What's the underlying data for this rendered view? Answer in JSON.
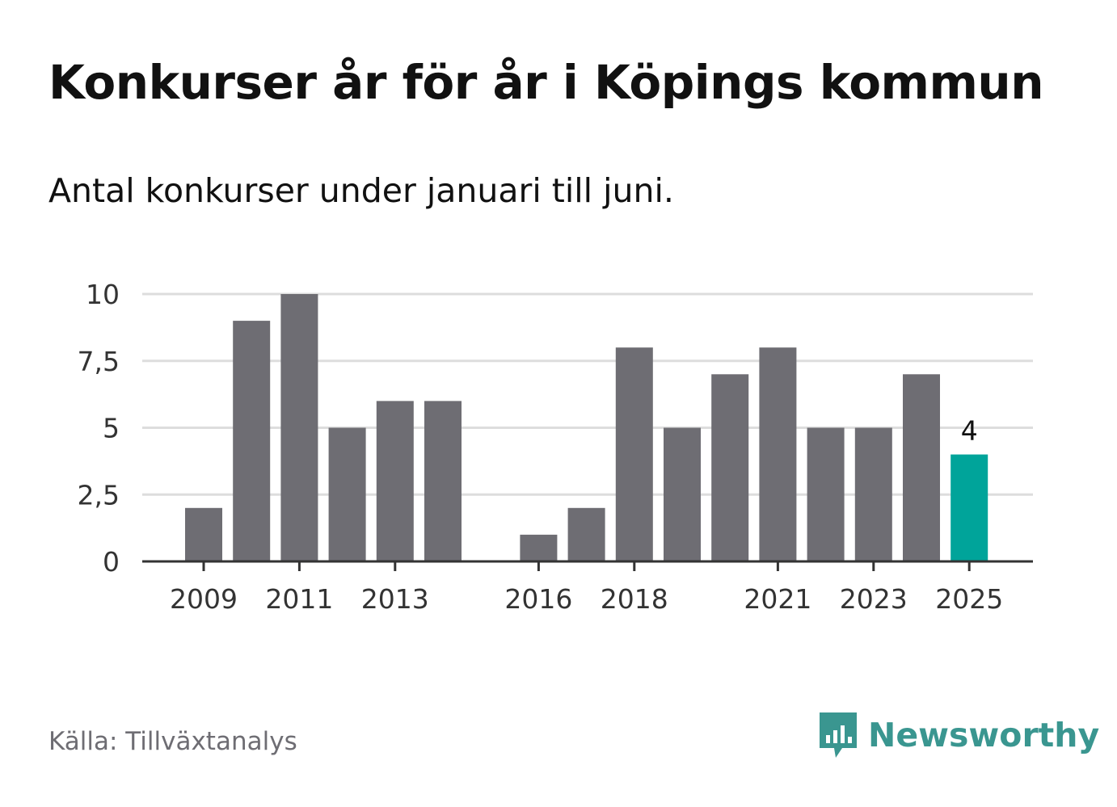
{
  "title": "Konkurser år för år i Köpings kommun",
  "subtitle": "Antal konkurser under januari till juni.",
  "source": "Källa: Tillväxtanalys",
  "brand": {
    "name": "Newsworthy",
    "color": "#3a9690",
    "icon": "bar-chart-speech-bubble-icon"
  },
  "colors": {
    "bar": "#6e6d73",
    "highlight": "#00a49a",
    "grid": "#dddddd",
    "axis": "#333333",
    "text": "#333333"
  },
  "chart_data": {
    "type": "bar",
    "categories": [
      "2009",
      "2010",
      "2011",
      "2012",
      "2013",
      "2014",
      "2015",
      "2016",
      "2017",
      "2018",
      "2019",
      "2020",
      "2021",
      "2022",
      "2023",
      "2024",
      "2025"
    ],
    "values": [
      2,
      9,
      10,
      5,
      6,
      6,
      0,
      1,
      2,
      8,
      5,
      7,
      8,
      5,
      5,
      7,
      4
    ],
    "x_tick_labels": [
      "2009",
      "2011",
      "2013",
      "2016",
      "2018",
      "2021",
      "2023",
      "2025"
    ],
    "y_ticks": [
      0,
      2.5,
      5,
      7.5,
      10
    ],
    "y_tick_labels": [
      "0",
      "2,5",
      "5",
      "7,5",
      "10"
    ],
    "ylim": [
      0,
      10
    ],
    "highlight": "2025",
    "data_labels": [
      {
        "category": "2025",
        "label": "4"
      }
    ],
    "grid": true
  }
}
